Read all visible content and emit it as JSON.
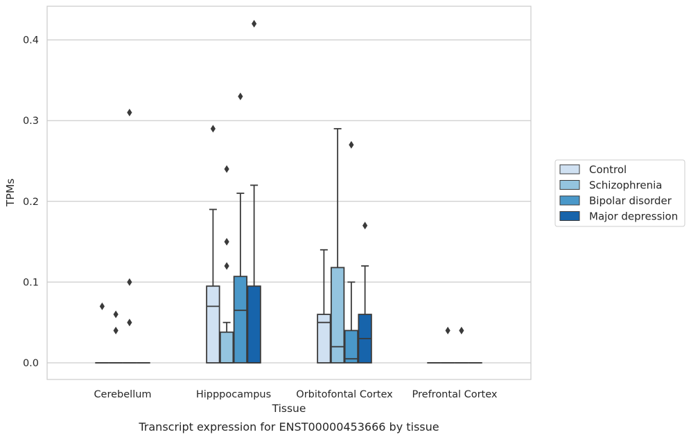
{
  "caption": "Transcript expression for ENST00000453666 by tissue",
  "chart_data": {
    "type": "box",
    "xlabel": "Tissue",
    "ylabel": "TPMs",
    "ylim": [
      -0.02,
      0.44
    ],
    "yticks": [
      "0.0",
      "0.1",
      "0.2",
      "0.3",
      "0.4"
    ],
    "ytick_values": [
      0.0,
      0.1,
      0.2,
      0.3,
      0.4
    ],
    "grid": "horizontal",
    "legend_position": "right",
    "categories": [
      "Cerebellum",
      "Hipppocampus",
      "Orbitofontal Cortex",
      "Prefrontal Cortex"
    ],
    "series": [
      {
        "name": "Control",
        "color": "#d0e1f2",
        "boxes": [
          {
            "min": 0,
            "q1": 0,
            "median": 0,
            "q3": 0,
            "max": 0,
            "outliers": [
              0.07
            ]
          },
          {
            "min": 0,
            "q1": 0,
            "median": 0.07,
            "q3": 0.095,
            "max": 0.19,
            "outliers": [
              0.29
            ]
          },
          {
            "min": 0,
            "q1": 0,
            "median": 0.05,
            "q3": 0.06,
            "max": 0.14,
            "outliers": []
          },
          {
            "min": 0,
            "q1": 0,
            "median": 0,
            "q3": 0,
            "max": 0,
            "outliers": []
          }
        ]
      },
      {
        "name": "Schizophrenia",
        "color": "#94c4df",
        "boxes": [
          {
            "min": 0,
            "q1": 0,
            "median": 0,
            "q3": 0,
            "max": 0,
            "outliers": [
              0.04,
              0.06
            ]
          },
          {
            "min": 0,
            "q1": 0,
            "median": 0,
            "q3": 0.038,
            "max": 0.05,
            "outliers": [
              0.12,
              0.15,
              0.24
            ]
          },
          {
            "min": 0,
            "q1": 0,
            "median": 0.02,
            "q3": 0.118,
            "max": 0.29,
            "outliers": []
          },
          {
            "min": 0,
            "q1": 0,
            "median": 0,
            "q3": 0,
            "max": 0,
            "outliers": [
              0.04
            ]
          }
        ]
      },
      {
        "name": "Bipolar disorder",
        "color": "#4a98c9",
        "boxes": [
          {
            "min": 0,
            "q1": 0,
            "median": 0,
            "q3": 0,
            "max": 0,
            "outliers": [
              0.05,
              0.1,
              0.31
            ]
          },
          {
            "min": 0,
            "q1": 0,
            "median": 0.065,
            "q3": 0.107,
            "max": 0.21,
            "outliers": [
              0.33
            ]
          },
          {
            "min": 0,
            "q1": 0,
            "median": 0.005,
            "q3": 0.04,
            "max": 0.1,
            "outliers": [
              0.27
            ]
          },
          {
            "min": 0,
            "q1": 0,
            "median": 0,
            "q3": 0,
            "max": 0,
            "outliers": [
              0.04
            ]
          }
        ]
      },
      {
        "name": "Major depression",
        "color": "#1764ab",
        "boxes": [
          {
            "min": 0,
            "q1": 0,
            "median": 0,
            "q3": 0,
            "max": 0,
            "outliers": []
          },
          {
            "min": 0,
            "q1": 0,
            "median": 0,
            "q3": 0.095,
            "max": 0.22,
            "outliers": [
              0.42
            ]
          },
          {
            "min": 0,
            "q1": 0,
            "median": 0.03,
            "q3": 0.06,
            "max": 0.12,
            "outliers": [
              0.17
            ]
          },
          {
            "min": 0,
            "q1": 0,
            "median": 0,
            "q3": 0,
            "max": 0,
            "outliers": []
          }
        ]
      }
    ]
  }
}
